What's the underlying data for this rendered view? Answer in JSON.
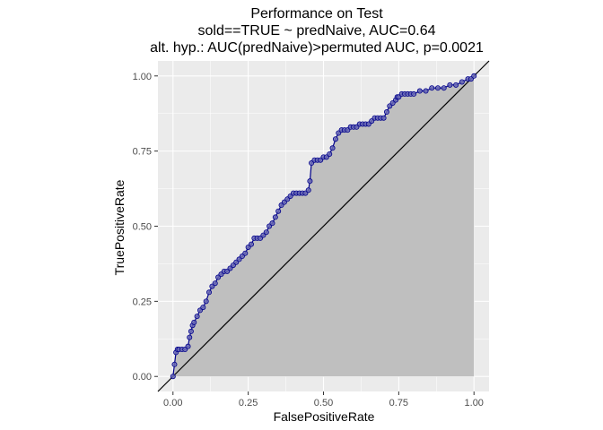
{
  "chart_data": {
    "type": "line",
    "title_lines": [
      "Performance on Test",
      "sold==TRUE ~ predNaive, AUC=0.64",
      "alt. hyp.: AUC(predNaive)>permuted AUC, p=0.0021"
    ],
    "xlabel": "FalsePositiveRate",
    "ylabel": "TruePositiveRate",
    "xlim": [
      -0.05,
      1.05
    ],
    "ylim": [
      -0.05,
      1.05
    ],
    "xticks": [
      0.0,
      0.25,
      0.5,
      0.75,
      1.0
    ],
    "yticks": [
      0.0,
      0.25,
      0.5,
      0.75,
      1.0
    ],
    "xtick_labels": [
      "0.00",
      "0.25",
      "0.50",
      "0.75",
      "1.00"
    ],
    "ytick_labels": [
      "0.00",
      "0.25",
      "0.50",
      "0.75",
      "1.00"
    ],
    "grid": true,
    "reference_line": {
      "x": [
        -0.05,
        1.05
      ],
      "y": [
        -0.05,
        1.05
      ]
    },
    "series": [
      {
        "x": [
          0,
          0.005,
          0.01,
          0.015,
          0.02,
          0.03,
          0.04,
          0.05,
          0.055,
          0.06,
          0.065,
          0.07,
          0.08,
          0.09,
          0.1,
          0.11,
          0.12,
          0.13,
          0.14,
          0.15,
          0.16,
          0.17,
          0.18,
          0.19,
          0.2,
          0.21,
          0.22,
          0.23,
          0.24,
          0.25,
          0.26,
          0.27,
          0.28,
          0.29,
          0.3,
          0.31,
          0.32,
          0.33,
          0.34,
          0.35,
          0.36,
          0.37,
          0.38,
          0.39,
          0.4,
          0.41,
          0.42,
          0.43,
          0.44,
          0.45,
          0.455,
          0.46,
          0.47,
          0.48,
          0.49,
          0.5,
          0.51,
          0.52,
          0.53,
          0.54,
          0.55,
          0.56,
          0.57,
          0.58,
          0.59,
          0.6,
          0.61,
          0.62,
          0.63,
          0.64,
          0.65,
          0.66,
          0.67,
          0.68,
          0.69,
          0.7,
          0.71,
          0.72,
          0.73,
          0.74,
          0.745,
          0.75,
          0.76,
          0.77,
          0.78,
          0.79,
          0.8,
          0.82,
          0.84,
          0.86,
          0.88,
          0.9,
          0.92,
          0.94,
          0.96,
          0.98,
          0.99,
          1.0
        ],
        "y": [
          0,
          0.04,
          0.08,
          0.09,
          0.09,
          0.09,
          0.09,
          0.1,
          0.13,
          0.15,
          0.17,
          0.18,
          0.2,
          0.22,
          0.23,
          0.25,
          0.28,
          0.3,
          0.31,
          0.33,
          0.34,
          0.35,
          0.35,
          0.36,
          0.37,
          0.38,
          0.39,
          0.4,
          0.41,
          0.43,
          0.44,
          0.46,
          0.46,
          0.46,
          0.47,
          0.48,
          0.5,
          0.51,
          0.53,
          0.55,
          0.57,
          0.58,
          0.59,
          0.6,
          0.61,
          0.61,
          0.61,
          0.61,
          0.61,
          0.62,
          0.65,
          0.71,
          0.72,
          0.72,
          0.72,
          0.73,
          0.73,
          0.74,
          0.76,
          0.79,
          0.81,
          0.82,
          0.82,
          0.82,
          0.83,
          0.83,
          0.83,
          0.84,
          0.84,
          0.84,
          0.84,
          0.85,
          0.86,
          0.86,
          0.86,
          0.86,
          0.88,
          0.9,
          0.91,
          0.92,
          0.93,
          0.93,
          0.94,
          0.94,
          0.94,
          0.94,
          0.94,
          0.95,
          0.95,
          0.96,
          0.96,
          0.96,
          0.97,
          0.97,
          0.98,
          0.99,
          0.99,
          1.0
        ]
      }
    ],
    "colors": {
      "panel_bg": "#ebebeb",
      "grid_major": "#ffffff",
      "area_fill": "#bfbfbf",
      "curve_line": "#00008b",
      "point_fill": "#6b6bb5",
      "point_edge": "#00008b",
      "reference_line": "#000000"
    }
  }
}
